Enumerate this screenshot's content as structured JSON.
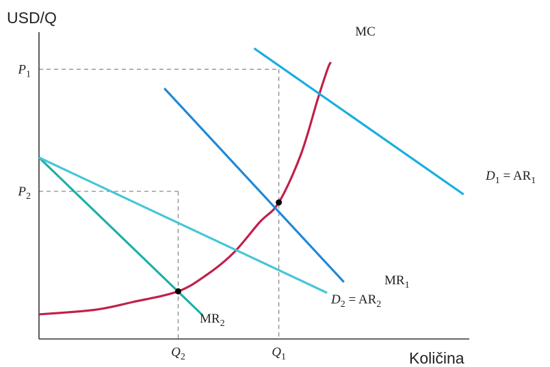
{
  "chart_data": {
    "type": "line",
    "ylabel": "USD/Q",
    "xlabel": "Količina",
    "x_ticks": [
      {
        "label": "Q",
        "sub": "2",
        "x": 3.72
      },
      {
        "label": "Q",
        "sub": "1",
        "x": 6.41
      }
    ],
    "y_ticks": [
      {
        "label": "P",
        "sub": "1",
        "y": 8.77
      },
      {
        "label": "P",
        "sub": "2",
        "y": 4.8
      }
    ],
    "series": [
      {
        "name": "MC",
        "color": "#c0204a",
        "label_main": "MC",
        "label_sub": "",
        "label_italic_part": "",
        "points": [
          [
            0.0,
            0.8
          ],
          [
            1.5,
            0.95
          ],
          [
            2.5,
            1.2
          ],
          [
            3.72,
            1.55
          ],
          [
            4.5,
            2.1
          ],
          [
            5.2,
            2.8
          ],
          [
            5.9,
            3.8
          ],
          [
            6.41,
            4.44
          ],
          [
            7.0,
            6.0
          ],
          [
            7.45,
            7.8
          ],
          [
            7.72,
            8.8
          ],
          [
            7.8,
            9.0
          ]
        ]
      },
      {
        "name": "MR1",
        "color": "#1e88d8",
        "label_main": "MR",
        "label_sub": "1",
        "label_italic_part": "",
        "points": [
          [
            3.35,
            8.15
          ],
          [
            8.15,
            1.85
          ]
        ]
      },
      {
        "name": "D1 = AR1",
        "color": "#18aee0",
        "label_main": " = AR",
        "label_sub": "1",
        "label_italic_part": "D",
        "label_italic_sub": "1",
        "points": [
          [
            5.75,
            9.45
          ],
          [
            11.35,
            4.7
          ]
        ]
      },
      {
        "name": "MR2",
        "color": "#1cb0a8",
        "label_main": "MR",
        "label_sub": "2",
        "label_italic_part": "",
        "points": [
          [
            0.0,
            5.9
          ],
          [
            4.35,
            0.8
          ]
        ]
      },
      {
        "name": "D2 = AR2",
        "color": "#46c6d8",
        "label_main": " = AR",
        "label_sub": "2",
        "label_italic_part": "D",
        "label_italic_sub": "2",
        "points": [
          [
            0.0,
            5.9
          ],
          [
            7.7,
            1.5
          ]
        ]
      }
    ],
    "points": [
      {
        "x": 3.72,
        "y": 1.55
      },
      {
        "x": 6.41,
        "y": 4.44
      }
    ],
    "guides": [
      {
        "x": 6.41,
        "y": 8.77
      },
      {
        "x": 3.72,
        "y": 4.8
      }
    ],
    "xlim": [
      0,
      11.5
    ],
    "ylim": [
      0,
      10
    ],
    "grid": false,
    "legend": "none"
  }
}
